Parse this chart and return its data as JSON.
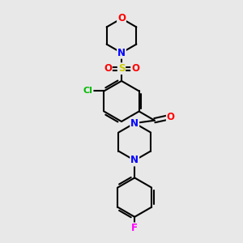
{
  "background_color": "#e8e8e8",
  "bond_color": "#000000",
  "bond_width": 1.5,
  "atom_colors": {
    "O": "#ff0000",
    "N": "#0000ff",
    "S": "#cccc00",
    "Cl": "#00bb00",
    "F": "#ff00ff",
    "C": "#000000"
  },
  "font_size": 8.5,
  "figsize": [
    3.0,
    3.0
  ],
  "dpi": 100
}
